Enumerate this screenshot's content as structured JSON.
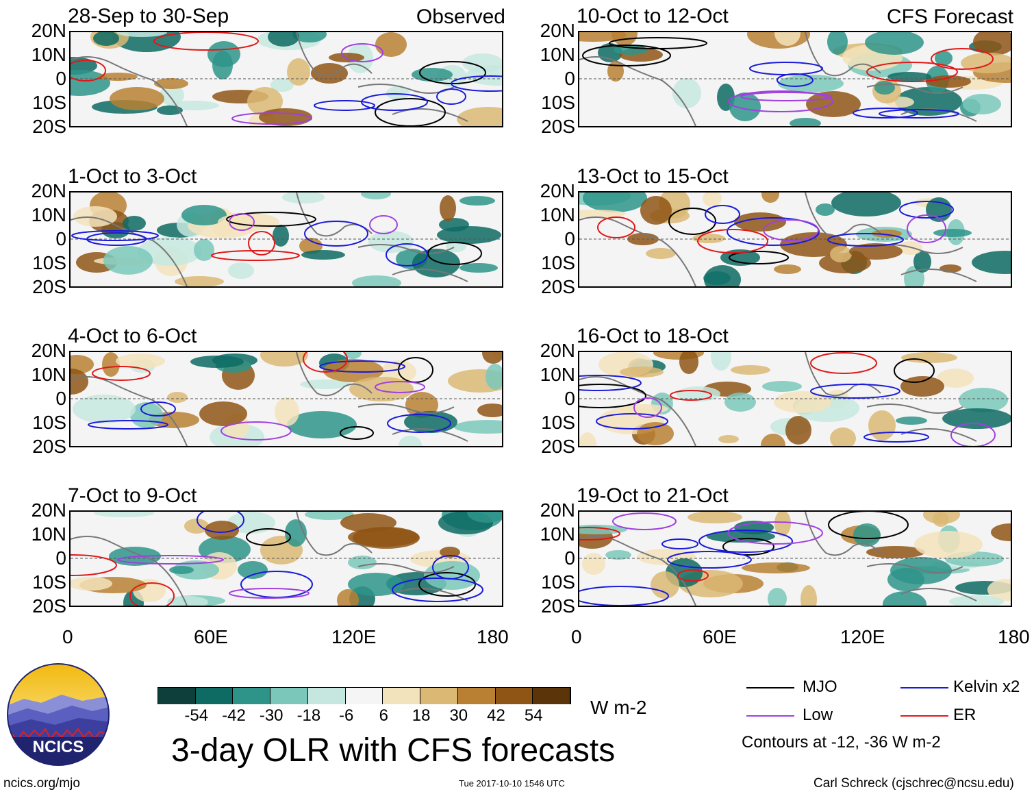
{
  "chart_data": {
    "type": "heatmap",
    "title": "3-day OLR with CFS forecasts",
    "variable": "OLR anomaly",
    "units": "W m-2",
    "column_labels": {
      "observed": "Observed",
      "forecast": "CFS Forecast"
    },
    "lat_ticks": [
      "20N",
      "10N",
      "0",
      "10S",
      "20S"
    ],
    "lon_ticks": [
      "0",
      "60E",
      "120E",
      "180"
    ],
    "lat_range": [
      -20,
      20
    ],
    "lon_range": [
      0,
      180
    ],
    "panels": [
      {
        "period": "28-Sep to 30-Sep",
        "kind": "Observed"
      },
      {
        "period": "1-Oct to 3-Oct",
        "kind": "Observed"
      },
      {
        "period": "4-Oct to 6-Oct",
        "kind": "Observed"
      },
      {
        "period": "7-Oct to 9-Oct",
        "kind": "Observed"
      },
      {
        "period": "10-Oct to 12-Oct",
        "kind": "CFS Forecast"
      },
      {
        "period": "13-Oct to 15-Oct",
        "kind": "CFS Forecast"
      },
      {
        "period": "16-Oct to 18-Oct",
        "kind": "CFS Forecast"
      },
      {
        "period": "19-Oct to 21-Oct",
        "kind": "CFS Forecast"
      }
    ],
    "colorbar": {
      "levels": [
        -54,
        -42,
        -30,
        -18,
        -6,
        6,
        18,
        30,
        42,
        54
      ],
      "level_labels": [
        "-54",
        "-42",
        "-30",
        "-18",
        "-6",
        "6",
        "18",
        "30",
        "42",
        "54"
      ],
      "colors": [
        "#0e3f3a",
        "#0d6b63",
        "#2e948a",
        "#7bc8bb",
        "#c5e7df",
        "#f5f5f5",
        "#f3e3bc",
        "#dbb874",
        "#b98033",
        "#8f5515",
        "#5c3409"
      ],
      "units_label": "W m-2"
    },
    "legend": [
      {
        "label": "MJO",
        "color": "#000000"
      },
      {
        "label": "Kelvin x2",
        "color": "#1a1adb"
      },
      {
        "label": "Low",
        "color": "#a040e0"
      },
      {
        "label": "ER",
        "color": "#e01818"
      }
    ],
    "contour_note": "Contours at -12, -36 W m-2"
  },
  "footer": {
    "logo_text": "NCICS",
    "url": "ncics.org/mjo",
    "timestamp": "Tue 2017-10-10 1546 UTC",
    "author": "Carl Schreck (cjschrec@ncsu.edu)"
  }
}
